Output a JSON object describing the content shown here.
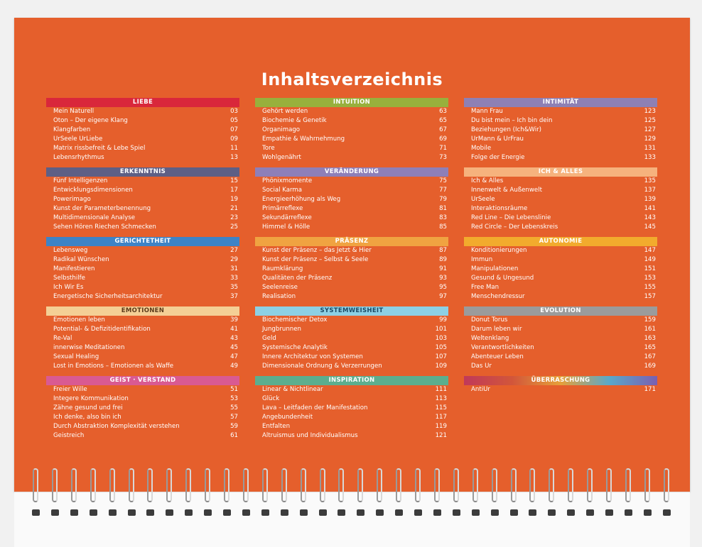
{
  "title": "Inhaltsverzeichnis",
  "columns": [
    {
      "sections": [
        {
          "name": "LIEBE",
          "color": "#d9273b",
          "entries": [
            {
              "label": "Mein Naturell",
              "page": "03"
            },
            {
              "label": "Oton – Der eigene Klang",
              "page": "05"
            },
            {
              "label": "Klangfarben",
              "page": "07"
            },
            {
              "label": "UrSeele UrLiebe",
              "page": "09"
            },
            {
              "label": "Matrix rissbefreit & Lebe Spiel",
              "page": "11"
            },
            {
              "label": "Lebensrhythmus",
              "page": "13"
            }
          ]
        },
        {
          "name": "ERKENNTNIS",
          "color": "#5e5f85",
          "entries": [
            {
              "label": "Fünf Intelligenzen",
              "page": "15"
            },
            {
              "label": "Entwicklungsdimensionen",
              "page": "17"
            },
            {
              "label": "Powerimago",
              "page": "19"
            },
            {
              "label": "Kunst der Parameterbenennung",
              "page": "21"
            },
            {
              "label": "Multidimensionale Analyse",
              "page": "23"
            },
            {
              "label": "Sehen Hören Riechen Schmecken",
              "page": "25"
            }
          ]
        },
        {
          "name": "GERICHTETHEIT",
          "color": "#3d83c6",
          "entries": [
            {
              "label": "Lebensweg",
              "page": "27"
            },
            {
              "label": "Radikal Wünschen",
              "page": "29"
            },
            {
              "label": "Manifestieren",
              "page": "31"
            },
            {
              "label": "Selbsthilfe",
              "page": "33"
            },
            {
              "label": "Ich Wir Es",
              "page": "35"
            },
            {
              "label": "Energetische Sicherheitsarchitektur",
              "page": "37"
            }
          ]
        },
        {
          "name": "EMOTIONEN",
          "color": "#f4cf95",
          "text_color": "#5a3a1a",
          "entries": [
            {
              "label": "Emotionen leben",
              "page": "39"
            },
            {
              "label": "Potential- & Defizitidentifikation",
              "page": "41"
            },
            {
              "label": "Re-Val",
              "page": "43"
            },
            {
              "label": "innerwise Meditationen",
              "page": "45"
            },
            {
              "label": "Sexual Healing",
              "page": "47"
            },
            {
              "label": "Lost in Emotions – Emotionen als Waffe",
              "page": "49"
            }
          ]
        },
        {
          "name": "GEIST · VERSTAND",
          "color": "#d95a92",
          "entries": [
            {
              "label": "Freier Wille",
              "page": "51"
            },
            {
              "label": "Integere Kommunikation",
              "page": "53"
            },
            {
              "label": "Zähne gesund und frei",
              "page": "55"
            },
            {
              "label": "Ich denke, also bin ich",
              "page": "57"
            },
            {
              "label": "Durch Abstraktion Komplexität verstehen",
              "page": "59"
            },
            {
              "label": "Geistreich",
              "page": "61"
            }
          ]
        }
      ]
    },
    {
      "sections": [
        {
          "name": "INTUITION",
          "color": "#98b03c",
          "entries": [
            {
              "label": "Gehört werden",
              "page": "63"
            },
            {
              "label": "Biochemie & Genetik",
              "page": "65"
            },
            {
              "label": "Organimago",
              "page": "67"
            },
            {
              "label": "Empathie & Wahrnehmung",
              "page": "69"
            },
            {
              "label": "Tore",
              "page": "71"
            },
            {
              "label": "Wohlgenährt",
              "page": "73"
            }
          ]
        },
        {
          "name": "VERÄNDERUNG",
          "color": "#8e7fb8",
          "entries": [
            {
              "label": "Phönixmomente",
              "page": "75"
            },
            {
              "label": "Social Karma",
              "page": "77"
            },
            {
              "label": "Energieerhöhung als Weg",
              "page": "79"
            },
            {
              "label": "Primärreflexe",
              "page": "81"
            },
            {
              "label": "Sekundärreflexe",
              "page": "83"
            },
            {
              "label": "Himmel & Hölle",
              "page": "85"
            }
          ]
        },
        {
          "name": "PRÄSENZ",
          "color": "#f0a341",
          "entries": [
            {
              "label": "Kunst der Präsenz – das Jetzt & Hier",
              "page": "87"
            },
            {
              "label": "Kunst der Präsenz – Selbst & Seele",
              "page": "89"
            },
            {
              "label": "Raumklärung",
              "page": "91"
            },
            {
              "label": "Qualitäten der Präsenz",
              "page": "93"
            },
            {
              "label": "Seelenreise",
              "page": "95"
            },
            {
              "label": "Realisation",
              "page": "97"
            }
          ]
        },
        {
          "name": "SYSTEMWEISHEIT",
          "color": "#8dd0e4",
          "text_color": "#1b4a66",
          "entries": [
            {
              "label": "Biochemischer Detox",
              "page": "99"
            },
            {
              "label": "Jungbrunnen",
              "page": "101"
            },
            {
              "label": "Geld",
              "page": "103"
            },
            {
              "label": "Systemische Analytik",
              "page": "105"
            },
            {
              "label": "Innere Architektur von Systemen",
              "page": "107"
            },
            {
              "label": "Dimensionale Ordnung & Verzerrungen",
              "page": "109"
            }
          ]
        },
        {
          "name": "INSPIRATION",
          "color": "#5cae8e",
          "entries": [
            {
              "label": "Linear & Nichtlinear",
              "page": "111"
            },
            {
              "label": "Glück",
              "page": "113"
            },
            {
              "label": "Lava – Leitfaden der Manifestation",
              "page": "115"
            },
            {
              "label": "Angebundenheit",
              "page": "117"
            },
            {
              "label": "Entfalten",
              "page": "119"
            },
            {
              "label": "Altruismus und Individualismus",
              "page": "121"
            }
          ]
        }
      ]
    },
    {
      "sections": [
        {
          "name": "INTIMITÄT",
          "color": "#8e80b4",
          "entries": [
            {
              "label": "Mann Frau",
              "page": "123"
            },
            {
              "label": "Du bist mein – Ich bin dein",
              "page": "125"
            },
            {
              "label": "Beziehungen (Ich&Wir)",
              "page": "127"
            },
            {
              "label": "UrMann & UrFrau",
              "page": "129"
            },
            {
              "label": "Mobile",
              "page": "131"
            },
            {
              "label": "Folge der Energie",
              "page": "133"
            }
          ]
        },
        {
          "name": "ICH & ALLES",
          "color": "#f6b27d",
          "entries": [
            {
              "label": "Ich & Alles",
              "page": "135"
            },
            {
              "label": "Innenwelt & Außenwelt",
              "page": "137"
            },
            {
              "label": "UrSeele",
              "page": "139"
            },
            {
              "label": "Interaktionsräume",
              "page": "141"
            },
            {
              "label": "Red Line – Die Lebenslinie",
              "page": "143"
            },
            {
              "label": "Red Circle – Der Lebenskreis",
              "page": "145"
            }
          ]
        },
        {
          "name": "AUTONOMIE",
          "color": "#f2ab2d",
          "entries": [
            {
              "label": "Konditionierungen",
              "page": "147"
            },
            {
              "label": "Immun",
              "page": "149"
            },
            {
              "label": "Manipulationen",
              "page": "151"
            },
            {
              "label": "Gesund & Ungesund",
              "page": "153"
            },
            {
              "label": "Free Man",
              "page": "155"
            },
            {
              "label": "Menschendressur",
              "page": "157"
            }
          ]
        },
        {
          "name": "EVOLUTION",
          "color": "#9b9b9b",
          "entries": [
            {
              "label": "Donut Torus",
              "page": "159"
            },
            {
              "label": "Darum leben wir",
              "page": "161"
            },
            {
              "label": "Weltenklang",
              "page": "163"
            },
            {
              "label": "Verantwortlichkeiten",
              "page": "165"
            },
            {
              "label": "Abenteuer Leben",
              "page": "167"
            },
            {
              "label": "Das Ur",
              "page": "169"
            }
          ]
        },
        {
          "name": "ÜBERRASCHUNG",
          "color": "linear-gradient(90deg,#c0395a 0%,#d2563a 25%,#e6a03a 50%,#5aa9c9 75%,#7a5fb0 100%)",
          "entries": [
            {
              "label": "AntiUr",
              "page": "171"
            }
          ]
        }
      ]
    }
  ],
  "rings": {
    "count": 34
  }
}
